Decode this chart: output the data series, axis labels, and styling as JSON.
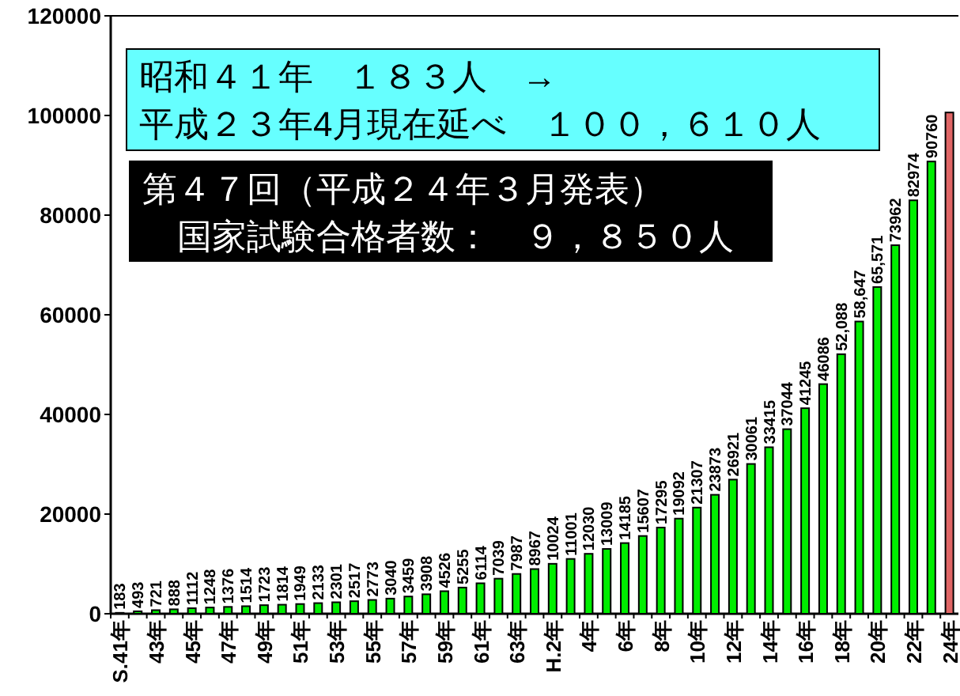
{
  "chart_data": {
    "type": "bar",
    "categories": [
      "S.41年",
      null,
      "43年",
      null,
      "45年",
      null,
      "47年",
      null,
      "49年",
      null,
      "51年",
      null,
      "53年",
      null,
      "55年",
      null,
      "57年",
      null,
      "59年",
      null,
      "61年",
      null,
      "63年",
      null,
      "H.2年",
      null,
      "4年",
      null,
      "6年",
      null,
      "8年",
      null,
      "10年",
      null,
      "12年",
      null,
      "14年",
      null,
      "16年",
      null,
      "18年",
      null,
      "20年",
      null,
      "22年",
      null,
      "24年"
    ],
    "values": [
      183,
      493,
      721,
      888,
      1112,
      1248,
      1376,
      1514,
      1723,
      1814,
      1949,
      2133,
      2301,
      2517,
      2773,
      3040,
      3459,
      3908,
      4526,
      5255,
      6114,
      7039,
      7987,
      8967,
      10024,
      11001,
      12030,
      13009,
      14185,
      15607,
      17295,
      19092,
      21307,
      23873,
      26921,
      30061,
      33415,
      37044,
      41245,
      46086,
      52088,
      58647,
      65571,
      73962,
      82974,
      90760,
      100600
    ],
    "value_labels": [
      "183",
      "493",
      "721",
      "888",
      "1112",
      "1248",
      "1376",
      "1514",
      "1723",
      "1814",
      "1949",
      "2133",
      "2301",
      "2517",
      "2773",
      "3040",
      "3459",
      "3908",
      "4526",
      "5255",
      "6114",
      "7039",
      "7987",
      "8967",
      "10024",
      "11001",
      "12030",
      "13009",
      "14185",
      "15607",
      "17295",
      "19092",
      "21307",
      "23873",
      "26921",
      "30061",
      "33415",
      "37044",
      "41245",
      "46086",
      "52,088",
      "58,647",
      "65,571",
      "73962",
      "82974",
      "90760",
      null
    ],
    "colors": [
      "#00ee00",
      "#00ee00",
      "#00ee00",
      "#00ee00",
      "#00ee00",
      "#00ee00",
      "#00ee00",
      "#00ee00",
      "#00ee00",
      "#00ee00",
      "#00ee00",
      "#00ee00",
      "#00ee00",
      "#00ee00",
      "#00ee00",
      "#00ee00",
      "#00ee00",
      "#00ee00",
      "#00ee00",
      "#00ee00",
      "#00ee00",
      "#00ee00",
      "#00ee00",
      "#00ee00",
      "#00ee00",
      "#00ee00",
      "#00ee00",
      "#00ee00",
      "#00ee00",
      "#00ee00",
      "#00ee00",
      "#00ee00",
      "#00ee00",
      "#00ee00",
      "#00ee00",
      "#00ee00",
      "#00ee00",
      "#00ee00",
      "#00ee00",
      "#00ee00",
      "#00ee00",
      "#00ee00",
      "#00ee00",
      "#00ee00",
      "#00ee00",
      "#00ee00",
      "#e06666"
    ],
    "ylim": [
      0,
      120000
    ],
    "yticks": [
      0,
      20000,
      40000,
      60000,
      80000,
      100000,
      120000
    ],
    "annotations": [
      "昭和４１年　１８３人　→",
      "平成２３年4月現在延べ　１００，６１０人",
      "第４７回（平成２４年３月発表）",
      "国家試験合格者数：　９，８５０人"
    ],
    "grid": false
  }
}
